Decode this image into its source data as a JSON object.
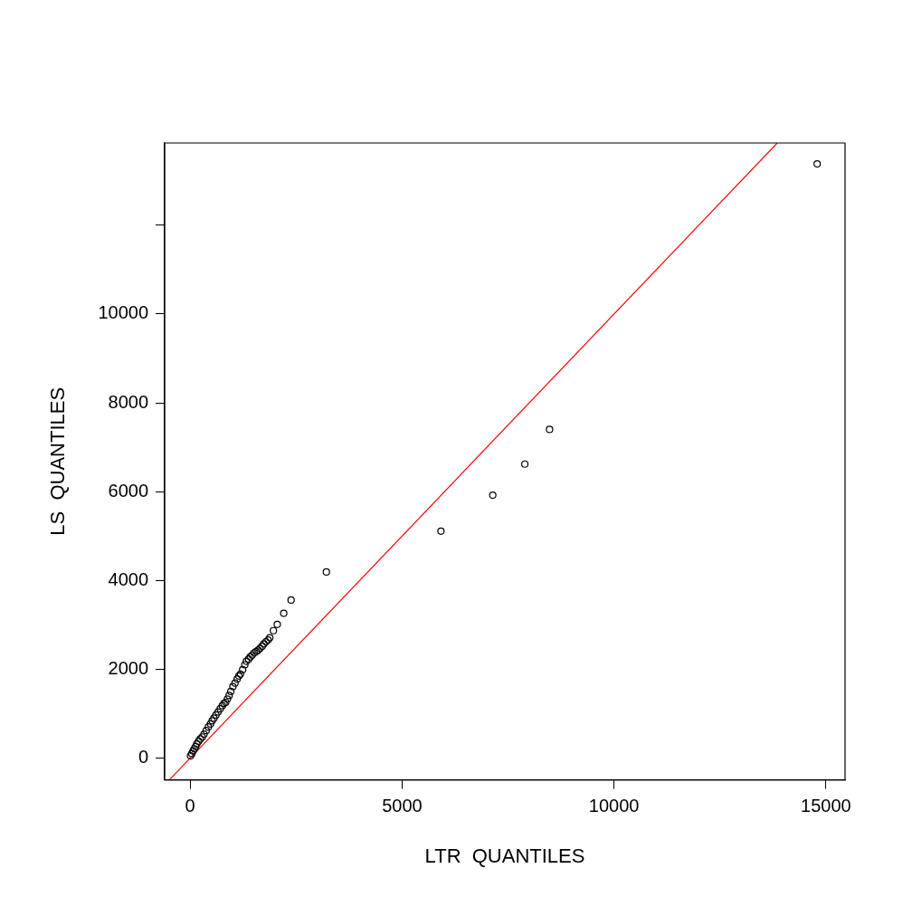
{
  "chart_data": {
    "type": "scatter",
    "xlabel": "LTR  QUANTILES",
    "ylabel": "LS  QUANTILES",
    "xlim": [
      -600,
      15450
    ],
    "ylim": [
      -490,
      13850
    ],
    "xticks": [
      0,
      5000,
      10000,
      15000
    ],
    "yticks": [
      0,
      2000,
      4000,
      6000,
      8000,
      10000,
      {
        "value": 12000,
        "label": null
      }
    ],
    "grid": false,
    "legend": false,
    "marker": "circle",
    "series": [
      {
        "color": "#000000",
        "x": [
          10,
          40,
          70,
          100,
          130,
          160,
          200,
          240,
          285,
          330,
          380,
          430,
          480,
          520,
          562,
          610,
          660,
          710,
          760,
          800,
          840,
          880,
          920,
          960,
          1010,
          1060,
          1110,
          1150,
          1188,
          1240,
          1290,
          1327,
          1380,
          1420,
          1465,
          1510,
          1560,
          1604,
          1650,
          1700,
          1740,
          1790,
          1840,
          1880,
          1965,
          2056,
          2208,
          2382,
          3215,
          5917,
          7140,
          7896,
          8479,
          14792
        ],
        "values": [
          50,
          100,
          160,
          210,
          260,
          320,
          380,
          430,
          475,
          540,
          620,
          700,
          770,
          840,
          900,
          970,
          1040,
          1110,
          1180,
          1230,
          1255,
          1330,
          1410,
          1500,
          1610,
          1690,
          1780,
          1850,
          1890,
          1990,
          2100,
          2180,
          2230,
          2280,
          2320,
          2370,
          2400,
          2430,
          2470,
          2520,
          2570,
          2620,
          2660,
          2710,
          2870,
          3010,
          3260,
          3560,
          4190,
          5110,
          5920,
          6620,
          7400,
          13380
        ]
      },
      {
        "type": "line",
        "color": "#ff0000",
        "marker": "none",
        "x": [
          -480,
          13850
        ],
        "values": [
          -480,
          13850
        ]
      }
    ]
  }
}
